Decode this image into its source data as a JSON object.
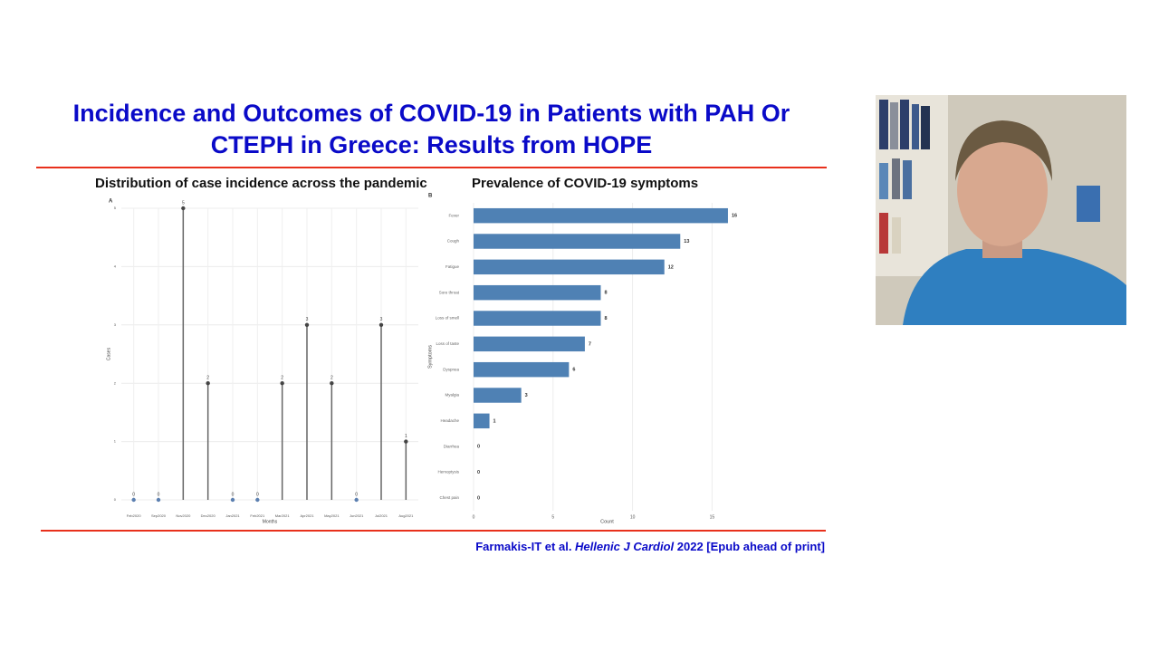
{
  "slide": {
    "title": "Incidence and Outcomes of COVID-19 in Patients with PAH Or CTEPH in Greece: Results from HOPE",
    "citation": [
      "Farmakis-IT et al. ",
      "Hellenic J Cardiol",
      " 2022 [Epub ahead of print]"
    ]
  },
  "chart_data": [
    {
      "type": "lollipop",
      "title": "Distribution of case incidence across the pandemic",
      "panel": "A",
      "x_label": "Months",
      "y_label": "Cases",
      "categories": [
        "Feb2020",
        "Sep2020",
        "Nov2020",
        "Dec2020",
        "Jan2021",
        "Feb2021",
        "Mar2021",
        "Apr2021",
        "May2021",
        "Jun2021",
        "Jul2021",
        "Aug2021"
      ],
      "values": [
        0,
        0,
        5,
        2,
        0,
        0,
        2,
        3,
        2,
        0,
        3,
        1
      ],
      "color": "#5b7fb0",
      "ylim": [
        0,
        5
      ],
      "yticks": [
        0,
        1,
        2,
        3,
        4,
        5
      ],
      "grid": true
    },
    {
      "type": "bar",
      "orientation": "horizontal",
      "title": "Prevalence of COVID-19 symptoms",
      "panel": "B",
      "x_label": "Count",
      "y_label": "Symptoms",
      "categories": [
        "Fever",
        "Cough",
        "Fatigue",
        "Sore throat",
        "Loss of smell",
        "Loss of taste",
        "Dyspnea",
        "Myalgia",
        "Headache",
        "Diarrhea",
        "Hemoptysis",
        "Chest pain"
      ],
      "values": [
        16,
        13,
        12,
        8,
        8,
        7,
        6,
        3,
        1,
        0,
        0,
        0
      ],
      "color": "#4f81b4",
      "xlim": [
        0,
        16.8
      ],
      "xticks": [
        0,
        5,
        10,
        15
      ],
      "grid": true
    }
  ]
}
